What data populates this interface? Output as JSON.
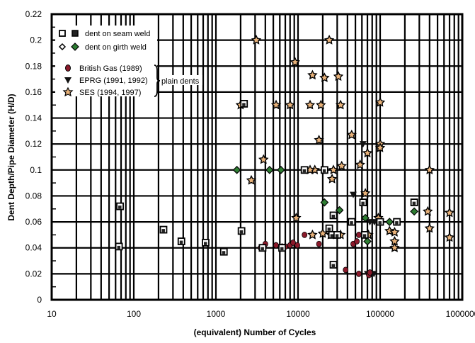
{
  "chart_data": {
    "type": "scatter",
    "title": "",
    "xlabel": "(equivalent) Number of Cycles",
    "ylabel": "Dent Depth/Pipe Diameter (H/D)",
    "xscale": "log",
    "xlim": [
      10,
      1000000
    ],
    "ylim": [
      0,
      0.22
    ],
    "xticks": [
      "10",
      "100",
      "1000",
      "10000",
      "100000",
      "1000000"
    ],
    "yticks": [
      "0",
      "0.02",
      "0.04",
      "0.06",
      "0.08",
      "0.1",
      "0.12",
      "0.14",
      "0.16",
      "0.18",
      "0.2",
      "0.22"
    ],
    "grid": true,
    "legend_position": "upper-left",
    "legend": {
      "seam_label": "dent on seam weld",
      "girth_label": "dent on girth weld",
      "bg_label": "British Gas (1989)",
      "eprg_label": "EPRG (1991, 1992)",
      "ses_label": "SES (1994, 1997)",
      "bracket_label": "plain dents"
    },
    "colors": {
      "british_gas": "#8b1a2b",
      "eprg": "#111111",
      "ses": "#e8b27a",
      "girth_fill": "#2e7d32"
    },
    "series": [
      {
        "name": "SES (1994, 1997)",
        "marker": "star",
        "points": [
          [
            3100,
            0.2
          ],
          [
            24000,
            0.2
          ],
          [
            9200,
            0.183
          ],
          [
            15000,
            0.173
          ],
          [
            21000,
            0.171
          ],
          [
            31000,
            0.172
          ],
          [
            2000,
            0.15
          ],
          [
            5400,
            0.15
          ],
          [
            8000,
            0.15
          ],
          [
            14000,
            0.15
          ],
          [
            19000,
            0.15
          ],
          [
            33000,
            0.15
          ],
          [
            100000,
            0.152
          ],
          [
            18000,
            0.123
          ],
          [
            45000,
            0.127
          ],
          [
            3800,
            0.108
          ],
          [
            2700,
            0.092
          ],
          [
            26000,
            0.093
          ],
          [
            70000,
            0.113
          ],
          [
            27000,
            0.1
          ],
          [
            34000,
            0.103
          ],
          [
            100000,
            0.12
          ],
          [
            100000,
            0.117
          ],
          [
            400000,
            0.1
          ],
          [
            16000,
            0.1
          ],
          [
            14000,
            0.1
          ],
          [
            57000,
            0.104
          ],
          [
            66000,
            0.082
          ],
          [
            9500,
            0.063
          ],
          [
            95000,
            0.063
          ],
          [
            33000,
            0.05
          ],
          [
            15000,
            0.05
          ],
          [
            25000,
            0.05
          ],
          [
            20000,
            0.051
          ],
          [
            72000,
            0.05
          ],
          [
            130000,
            0.053
          ],
          [
            150000,
            0.052
          ],
          [
            150000,
            0.045
          ],
          [
            380000,
            0.068
          ],
          [
            400000,
            0.055
          ],
          [
            700000,
            0.067
          ],
          [
            700000,
            0.048
          ],
          [
            150000,
            0.04
          ]
        ]
      },
      {
        "name": "EPRG (1991, 1992)",
        "marker": "triangle-down",
        "points": [
          [
            62000,
            0.12
          ],
          [
            47000,
            0.081
          ],
          [
            75000,
            0.06
          ],
          [
            85000,
            0.06
          ],
          [
            70000,
            0.02
          ],
          [
            78000,
            0.02
          ],
          [
            84000,
            0.02
          ]
        ]
      },
      {
        "name": "British Gas (1989)",
        "marker": "circle",
        "points": [
          [
            3500,
            0.04
          ],
          [
            4000,
            0.043
          ],
          [
            5400,
            0.042
          ],
          [
            6400,
            0.041
          ],
          [
            7000,
            0.041
          ],
          [
            8000,
            0.042
          ],
          [
            8700,
            0.044
          ],
          [
            9800,
            0.042
          ],
          [
            12000,
            0.05
          ],
          [
            18000,
            0.043
          ],
          [
            47000,
            0.043
          ],
          [
            52000,
            0.045
          ],
          [
            55000,
            0.05
          ],
          [
            38000,
            0.023
          ],
          [
            55000,
            0.02
          ],
          [
            73000,
            0.019
          ],
          [
            75000,
            0.021
          ]
        ]
      },
      {
        "name": "dent on seam weld",
        "marker": "square",
        "points": [
          [
            68,
            0.072
          ],
          [
            66,
            0.041
          ],
          [
            230,
            0.054
          ],
          [
            380,
            0.045
          ],
          [
            750,
            0.044
          ],
          [
            1250,
            0.037
          ],
          [
            2050,
            0.053
          ],
          [
            2200,
            0.151
          ],
          [
            3700,
            0.04
          ],
          [
            6400,
            0.04
          ],
          [
            12000,
            0.1
          ],
          [
            21000,
            0.1
          ],
          [
            24000,
            0.055
          ],
          [
            27000,
            0.065
          ],
          [
            26000,
            0.05
          ],
          [
            30000,
            0.05
          ],
          [
            45000,
            0.06
          ],
          [
            62000,
            0.075
          ],
          [
            65000,
            0.05
          ],
          [
            100000,
            0.06
          ],
          [
            160000,
            0.06
          ],
          [
            260000,
            0.075
          ],
          [
            27000,
            0.027
          ]
        ]
      },
      {
        "name": "dent on girth weld",
        "marker": "diamond",
        "points": [
          [
            1800,
            0.1
          ],
          [
            4500,
            0.1
          ],
          [
            6200,
            0.1
          ],
          [
            21000,
            0.075
          ],
          [
            32000,
            0.069
          ],
          [
            66000,
            0.063
          ],
          [
            130000,
            0.06
          ],
          [
            70000,
            0.045
          ],
          [
            260000,
            0.068
          ]
        ]
      }
    ]
  }
}
